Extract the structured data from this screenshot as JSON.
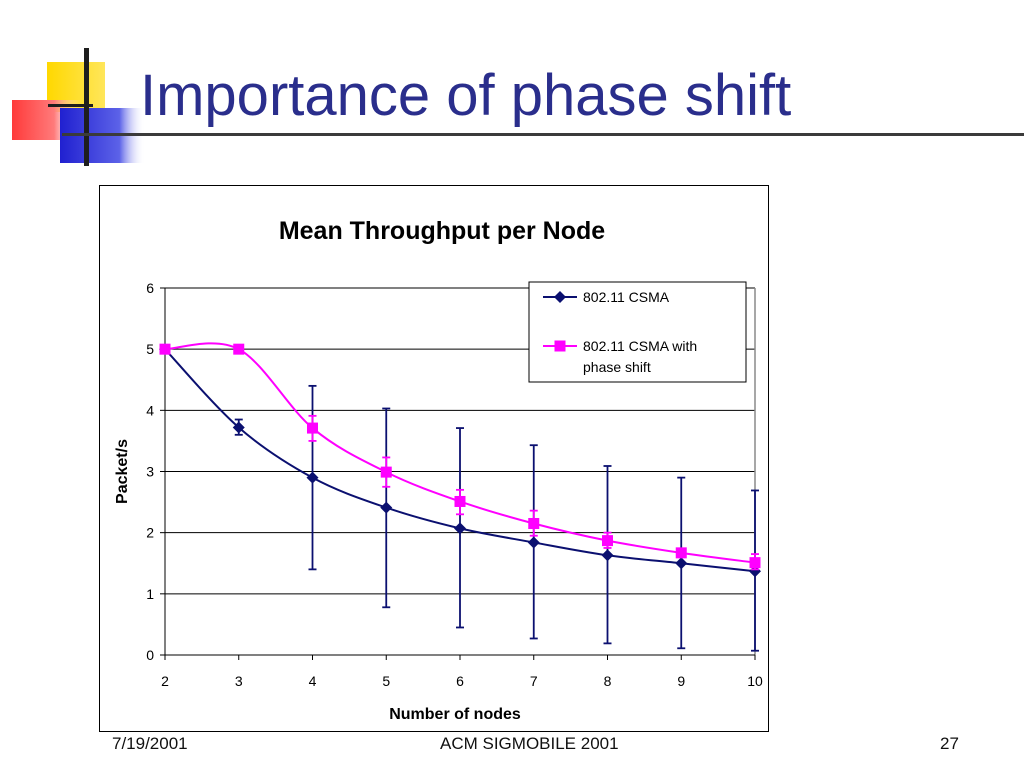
{
  "slide": {
    "title": "Importance of phase shift",
    "footer_date": "7/19/2001",
    "footer_conference": "ACM SIGMOBILE 2001",
    "page_number": "27"
  },
  "colors": {
    "title": "#2a2e8c",
    "series_csma": "#0b1070",
    "series_phase_shift": "#ff00ff"
  },
  "chart_data": {
    "type": "line",
    "title": "Mean Throughput per Node",
    "xlabel": "Number of nodes",
    "ylabel": "Packet/s",
    "x": [
      2,
      3,
      4,
      5,
      6,
      7,
      8,
      9,
      10
    ],
    "xlim": [
      2,
      10
    ],
    "ylim": [
      0,
      6
    ],
    "y_ticks": [
      0,
      1,
      2,
      3,
      4,
      5,
      6
    ],
    "x_ticks": [
      2,
      3,
      4,
      5,
      6,
      7,
      8,
      9,
      10
    ],
    "grid": true,
    "legend_position": "top-right",
    "series": [
      {
        "name": "802.11 CSMA",
        "marker": "diamond",
        "color": "#0b1070",
        "values": [
          5.0,
          3.72,
          2.9,
          2.41,
          2.07,
          1.84,
          1.63,
          1.5,
          1.37
        ],
        "error_upper": [
          5.0,
          3.85,
          4.4,
          4.03,
          3.71,
          3.43,
          3.09,
          2.9,
          2.69
        ],
        "error_lower": [
          5.0,
          3.6,
          1.4,
          0.78,
          0.45,
          0.27,
          0.19,
          0.11,
          0.07
        ]
      },
      {
        "name": "802.11 CSMA with phase shift",
        "marker": "square",
        "color": "#ff00ff",
        "values": [
          5.0,
          5.0,
          3.71,
          2.99,
          2.51,
          2.15,
          1.87,
          1.67,
          1.51
        ],
        "error_upper": [
          5.0,
          5.0,
          3.91,
          3.23,
          2.7,
          2.36,
          2.0,
          1.7,
          1.65
        ],
        "error_lower": [
          5.0,
          5.0,
          3.5,
          2.75,
          2.3,
          1.95,
          1.75,
          1.6,
          1.4
        ]
      }
    ]
  }
}
